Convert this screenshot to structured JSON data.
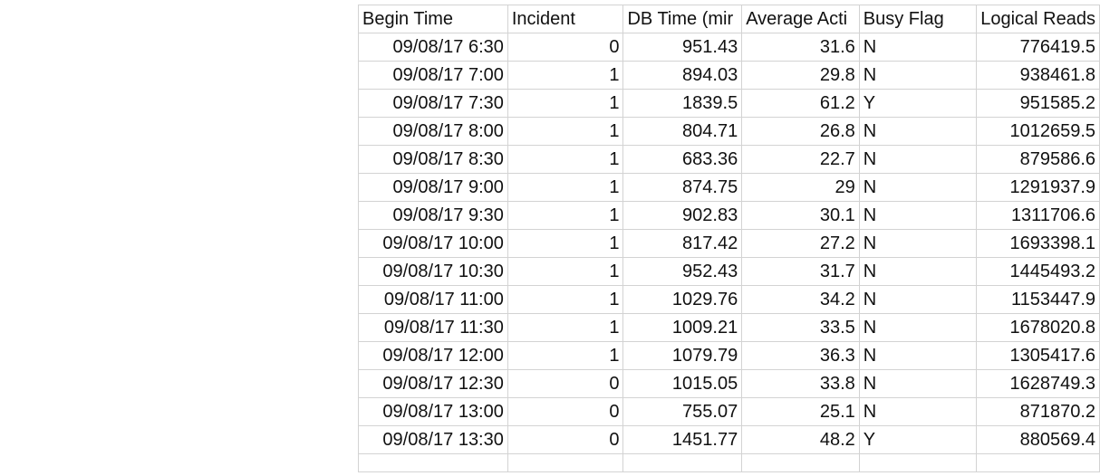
{
  "sheet": {
    "columns": [
      "Begin Time",
      "Incident",
      "DB Time (mir",
      "Average Acti",
      "Busy Flag",
      "Logical Reads"
    ],
    "rows": [
      [
        "09/08/17 6:30",
        "0",
        "951.43",
        "31.6",
        "N",
        "776419.5"
      ],
      [
        "09/08/17 7:00",
        "1",
        "894.03",
        "29.8",
        "N",
        "938461.8"
      ],
      [
        "09/08/17 7:30",
        "1",
        "1839.5",
        "61.2",
        "Y",
        "951585.2"
      ],
      [
        "09/08/17 8:00",
        "1",
        "804.71",
        "26.8",
        "N",
        "1012659.5"
      ],
      [
        "09/08/17 8:30",
        "1",
        "683.36",
        "22.7",
        "N",
        "879586.6"
      ],
      [
        "09/08/17 9:00",
        "1",
        "874.75",
        "29",
        "N",
        "1291937.9"
      ],
      [
        "09/08/17 9:30",
        "1",
        "902.83",
        "30.1",
        "N",
        "1311706.6"
      ],
      [
        "09/08/17 10:00",
        "1",
        "817.42",
        "27.2",
        "N",
        "1693398.1"
      ],
      [
        "09/08/17 10:30",
        "1",
        "952.43",
        "31.7",
        "N",
        "1445493.2"
      ],
      [
        "09/08/17 11:00",
        "1",
        "1029.76",
        "34.2",
        "N",
        "1153447.9"
      ],
      [
        "09/08/17 11:30",
        "1",
        "1009.21",
        "33.5",
        "N",
        "1678020.8"
      ],
      [
        "09/08/17 12:00",
        "1",
        "1079.79",
        "36.3",
        "N",
        "1305417.6"
      ],
      [
        "09/08/17 12:30",
        "0",
        "1015.05",
        "33.8",
        "N",
        "1628749.3"
      ],
      [
        "09/08/17 13:00",
        "0",
        "755.07",
        "25.1",
        "N",
        "871870.2"
      ],
      [
        "09/08/17 13:30",
        "0",
        "1451.77",
        "48.2",
        "Y",
        "880569.4"
      ]
    ]
  }
}
